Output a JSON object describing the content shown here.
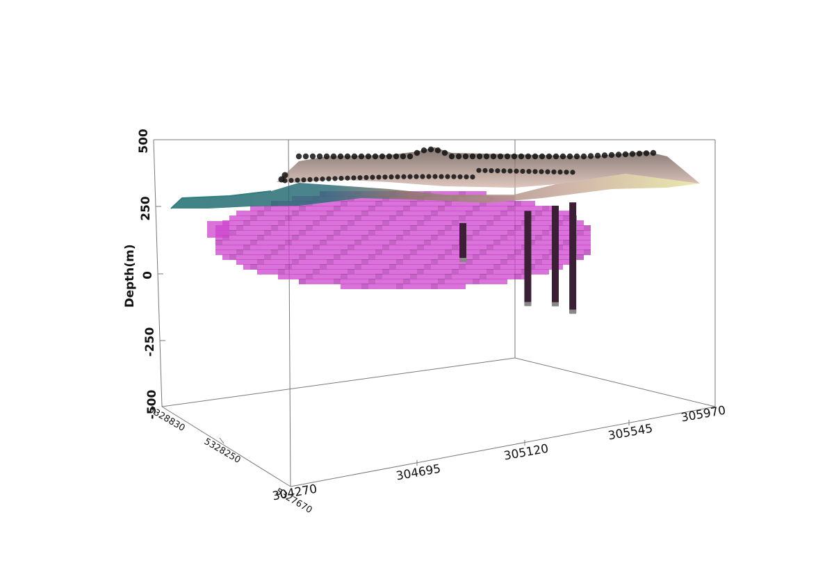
{
  "chart_data": {
    "type": "scatter",
    "title": "",
    "zlabel": "Depth(m)",
    "z_ticks": [
      "500",
      "250",
      "0",
      "-250",
      "-500"
    ],
    "x_ticks": [
      "304270",
      "304695",
      "305120",
      "305545",
      "305970"
    ],
    "y_ticks": [
      "5328830",
      "5328250",
      "5327670"
    ],
    "ranges": {
      "x": [
        304270,
        305970
      ],
      "y": [
        5327670,
        5328830
      ],
      "z": [
        -500,
        500
      ]
    },
    "grid": false,
    "legend": "none",
    "series": [
      {
        "kind": "ore-body-voxels",
        "color": "#cc44cc"
      },
      {
        "kind": "topographic-surface",
        "colors": [
          "#1f6e70",
          "#a89585",
          "#e6e6a0"
        ]
      },
      {
        "kind": "sample-points",
        "color": "#111111"
      },
      {
        "kind": "drill-holes",
        "color": "#3a1f35",
        "holes": [
          {
            "x": 304960,
            "z_top": 330,
            "z_bottom": 190
          },
          {
            "x": 305220,
            "z_top": 330,
            "z_bottom": -20
          },
          {
            "x": 305330,
            "z_top": 330,
            "z_bottom": -40
          },
          {
            "x": 305400,
            "z_top": 330,
            "z_bottom": -80
          }
        ]
      }
    ]
  }
}
